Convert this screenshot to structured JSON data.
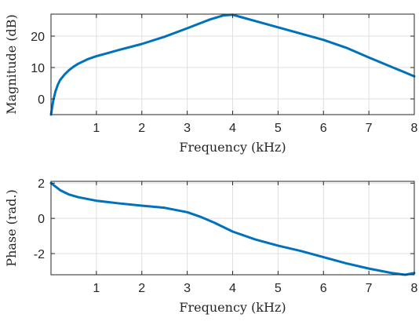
{
  "chart_data": [
    {
      "type": "line",
      "xlabel": "Frequency (kHz)",
      "ylabel": "Magnitude (dB)",
      "xlim": [
        0,
        8
      ],
      "ylim": [
        -5,
        27
      ],
      "xticks": [
        1,
        2,
        3,
        4,
        5,
        6,
        7,
        8
      ],
      "yticks": [
        0,
        10,
        20
      ],
      "grid": true,
      "color": "#0072bd",
      "series": [
        {
          "x": [
            0.0,
            0.05,
            0.1,
            0.15,
            0.2,
            0.3,
            0.4,
            0.5,
            0.6,
            0.8,
            1.0,
            1.2,
            1.5,
            2.0,
            2.5,
            3.0,
            3.5,
            3.8,
            4.0,
            4.2,
            4.5,
            5.0,
            5.5,
            6.0,
            6.5,
            7.0,
            7.5,
            8.0
          ],
          "y": [
            -5,
            -0.5,
            2.5,
            4.5,
            6.0,
            7.8,
            9.2,
            10.3,
            11.2,
            12.6,
            13.6,
            14.4,
            15.6,
            17.5,
            19.8,
            22.5,
            25.3,
            26.6,
            26.8,
            26.0,
            24.8,
            22.8,
            20.8,
            18.8,
            16.3,
            13.2,
            10.2,
            7.2
          ]
        }
      ]
    },
    {
      "type": "line",
      "xlabel": "Frequency (kHz)",
      "ylabel": "Phase (rad.)",
      "xlim": [
        0,
        8
      ],
      "ylim": [
        -3.2,
        2.1
      ],
      "xticks": [
        1,
        2,
        3,
        4,
        5,
        6,
        7,
        8
      ],
      "yticks": [
        2,
        0,
        -2
      ],
      "grid": true,
      "color": "#0072bd",
      "series": [
        {
          "x": [
            0.0,
            0.1,
            0.2,
            0.4,
            0.6,
            0.8,
            1.0,
            1.5,
            2.0,
            2.5,
            3.0,
            3.3,
            3.6,
            4.0,
            4.5,
            5.0,
            5.5,
            6.0,
            6.5,
            7.0,
            7.5,
            7.8,
            8.0
          ],
          "y": [
            2.0,
            1.8,
            1.6,
            1.35,
            1.2,
            1.1,
            1.0,
            0.85,
            0.72,
            0.6,
            0.35,
            0.08,
            -0.25,
            -0.75,
            -1.2,
            -1.55,
            -1.85,
            -2.2,
            -2.55,
            -2.85,
            -3.1,
            -3.2,
            -3.1
          ]
        }
      ]
    }
  ]
}
